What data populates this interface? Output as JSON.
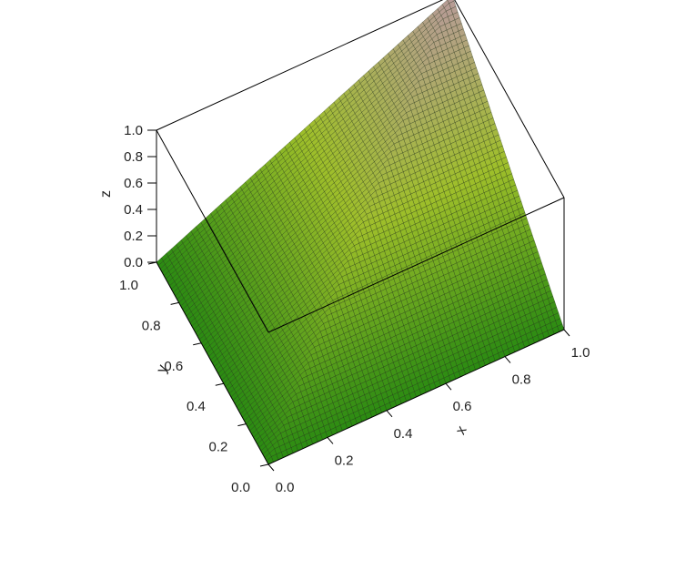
{
  "chart_data": {
    "type": "surface3d",
    "surface": "copula_upper_bound_min_xy",
    "xlabel": "x",
    "ylabel": "y",
    "zlabel": "z",
    "xlim": [
      0,
      1
    ],
    "ylim": [
      0,
      1
    ],
    "zlim": [
      0,
      1
    ],
    "x_ticks": [
      "0.0",
      "0.2",
      "0.4",
      "0.6",
      "0.8",
      "1.0"
    ],
    "y_ticks": [
      "0.0",
      "0.2",
      "0.4",
      "0.6",
      "0.8",
      "1.0"
    ],
    "z_ticks": [
      "0.0",
      "0.2",
      "0.4",
      "0.6",
      "0.8",
      "1.0"
    ],
    "grid_resolution": 60,
    "colors": {
      "low": "#2a8a12",
      "mid": "#9fbf2a",
      "high": "#b89a9a",
      "mesh": "#1a2a10",
      "box": "#000000"
    }
  }
}
